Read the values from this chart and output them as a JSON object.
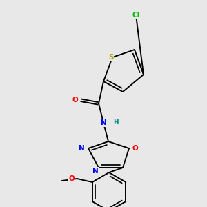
{
  "background_color": "#e8e8e8",
  "bond_color": "#000000",
  "atom_colors": {
    "Cl": "#00bb00",
    "S": "#aaaa00",
    "O": "#ff0000",
    "N": "#0000ff",
    "H": "#008888",
    "C": "#000000"
  },
  "figsize": [
    3.0,
    3.0
  ],
  "dpi": 100,
  "lw": 1.4,
  "fs": 7.5
}
